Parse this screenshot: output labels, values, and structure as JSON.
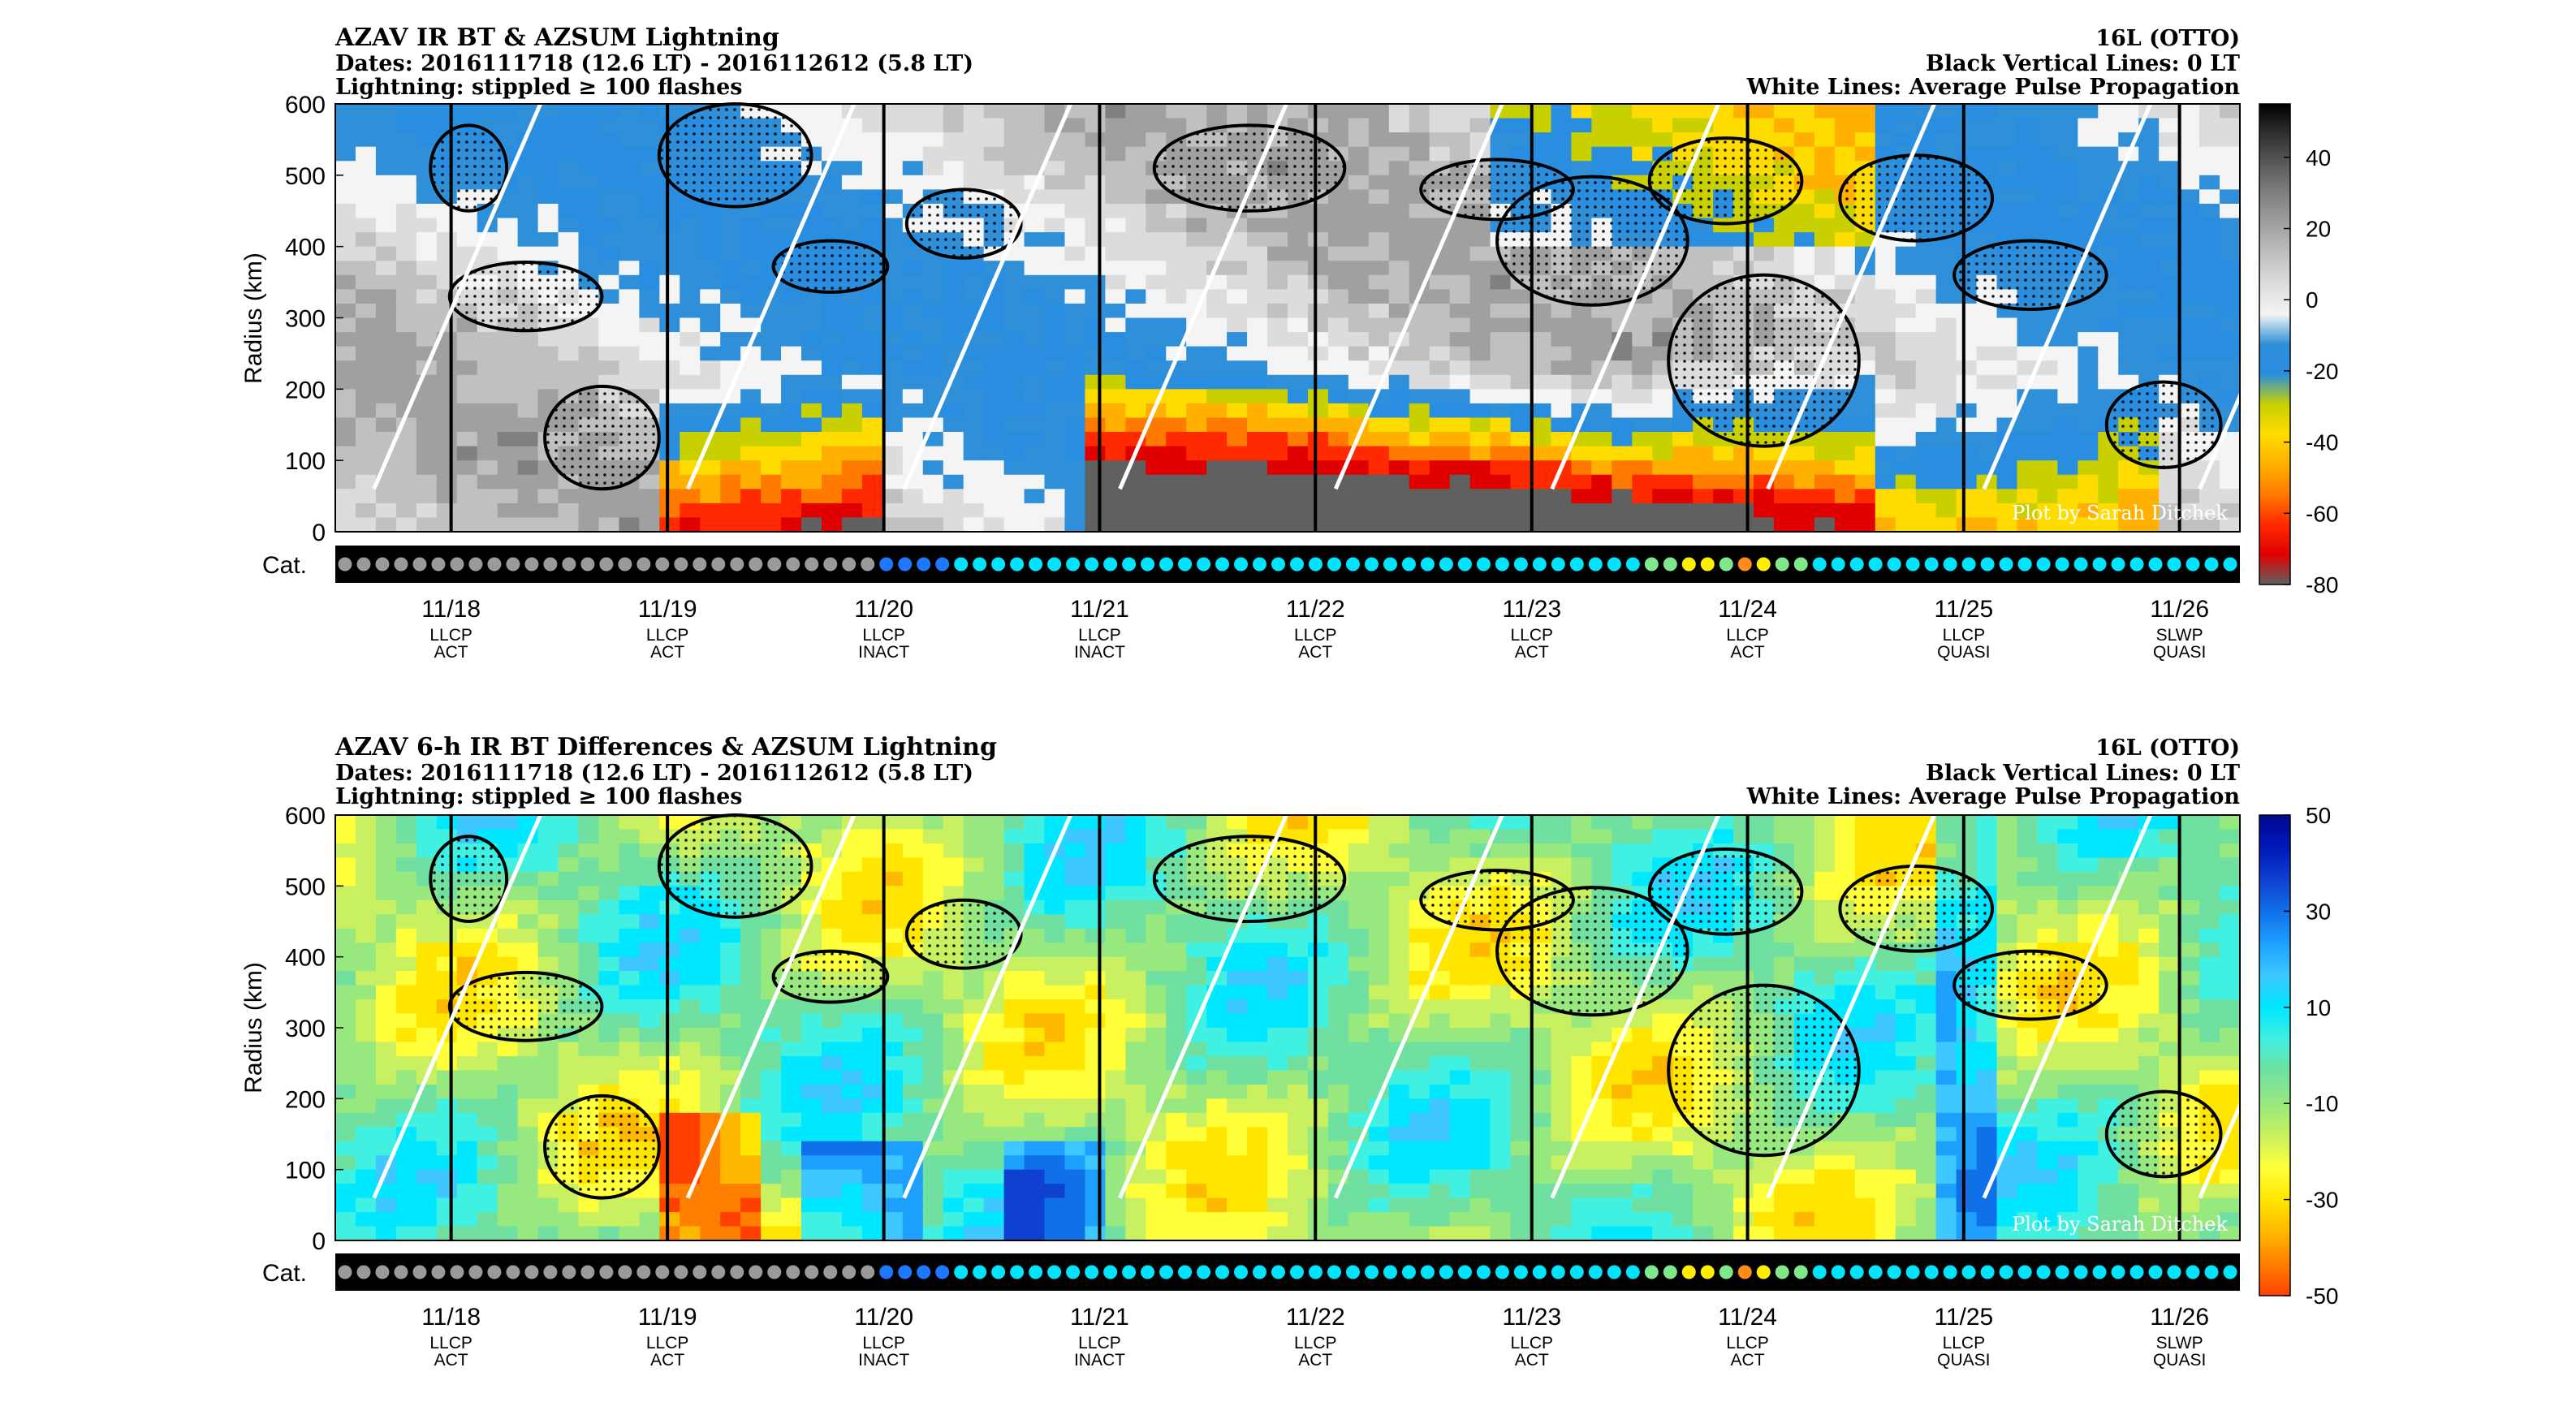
{
  "panels": [
    {
      "title_left": [
        "AZAV IR BT & AZSUM Lightning",
        "Dates: 2016111718 (12.6 LT) - 2016112612 (5.8 LT)",
        "Lightning: stippled ≥ 100 flashes"
      ],
      "title_right": [
        "16L (OTTO)",
        "Black Vertical Lines: 0 LT",
        "White Lines: Average Pulse Propagation"
      ],
      "watermark": "Plot by Sarah Ditchek",
      "colorbar_ticks": [
        "40",
        "20",
        "0",
        "-20",
        "-40",
        "-60",
        "-80"
      ],
      "colorbar_range": [
        -80,
        55
      ]
    },
    {
      "title_left": [
        "AZAV 6-h IR BT Differences & AZSUM Lightning",
        "Dates: 2016111718 (12.6 LT) - 2016112612 (5.8 LT)",
        "Lightning: stippled ≥ 100 flashes"
      ],
      "title_right": [
        "16L (OTTO)",
        "Black Vertical Lines: 0 LT",
        "White Lines: Average Pulse Propagation"
      ],
      "watermark": "Plot by Sarah Ditchek",
      "colorbar_ticks": [
        "50",
        "30",
        "10",
        "-10",
        "-30",
        "-50"
      ],
      "colorbar_range": [
        -50,
        50
      ]
    }
  ],
  "chart_data": [
    {
      "type": "heatmap",
      "title": "AZAV IR BT & AZSUM Lightning",
      "ylabel": "Radius (km)",
      "ylim": [
        0,
        600
      ],
      "yticks": [
        "0",
        "100",
        "200",
        "300",
        "400",
        "500",
        "600"
      ],
      "xlim": [
        "2016111718",
        "2016112612"
      ],
      "x_ticks": [
        {
          "date": "11/18",
          "cat": "LLCP",
          "phase": "ACT"
        },
        {
          "date": "11/19",
          "cat": "LLCP",
          "phase": "ACT"
        },
        {
          "date": "11/20",
          "cat": "LLCP",
          "phase": "INACT"
        },
        {
          "date": "11/21",
          "cat": "LLCP",
          "phase": "INACT"
        },
        {
          "date": "11/22",
          "cat": "LLCP",
          "phase": "ACT"
        },
        {
          "date": "11/23",
          "cat": "LLCP",
          "phase": "ACT"
        },
        {
          "date": "11/24",
          "cat": "LLCP",
          "phase": "ACT"
        },
        {
          "date": "11/25",
          "cat": "LLCP",
          "phase": "QUASI"
        },
        {
          "date": "11/26",
          "cat": "SLWP",
          "phase": "QUASI"
        }
      ],
      "cat_label": "Cat."
    },
    {
      "type": "heatmap",
      "title": "AZAV 6-h IR BT Differences & AZSUM Lightning",
      "ylabel": "Radius (km)",
      "ylim": [
        0,
        600
      ],
      "yticks": [
        "0",
        "100",
        "200",
        "300",
        "400",
        "500",
        "600"
      ],
      "xlim": [
        "2016111718",
        "2016112612"
      ],
      "x_ticks": [
        {
          "date": "11/18",
          "cat": "LLCP",
          "phase": "ACT"
        },
        {
          "date": "11/19",
          "cat": "LLCP",
          "phase": "ACT"
        },
        {
          "date": "11/20",
          "cat": "LLCP",
          "phase": "INACT"
        },
        {
          "date": "11/21",
          "cat": "LLCP",
          "phase": "INACT"
        },
        {
          "date": "11/22",
          "cat": "LLCP",
          "phase": "ACT"
        },
        {
          "date": "11/23",
          "cat": "LLCP",
          "phase": "ACT"
        },
        {
          "date": "11/24",
          "cat": "LLCP",
          "phase": "ACT"
        },
        {
          "date": "11/25",
          "cat": "LLCP",
          "phase": "QUASI"
        },
        {
          "date": "11/26",
          "cat": "SLWP",
          "phase": "QUASI"
        }
      ],
      "cat_label": "Cat."
    }
  ],
  "category_dots": [
    "gray",
    "gray",
    "gray",
    "gray",
    "gray",
    "gray",
    "gray",
    "gray",
    "gray",
    "gray",
    "gray",
    "gray",
    "gray",
    "gray",
    "gray",
    "gray",
    "gray",
    "gray",
    "gray",
    "gray",
    "gray",
    "gray",
    "gray",
    "gray",
    "gray",
    "gray",
    "gray",
    "gray",
    "gray",
    "blue",
    "blue",
    "blue",
    "blue",
    "cyan",
    "cyan",
    "cyan",
    "cyan",
    "cyan",
    "cyan",
    "cyan",
    "cyan",
    "cyan",
    "cyan",
    "cyan",
    "cyan",
    "cyan",
    "cyan",
    "cyan",
    "cyan",
    "cyan",
    "cyan",
    "cyan",
    "cyan",
    "cyan",
    "cyan",
    "cyan",
    "cyan",
    "cyan",
    "cyan",
    "cyan",
    "cyan",
    "cyan",
    "cyan",
    "cyan",
    "cyan",
    "cyan",
    "cyan",
    "cyan",
    "cyan",
    "cyan",
    "green",
    "green",
    "yellow",
    "yellow",
    "green",
    "orange",
    "yellow",
    "green",
    "green",
    "cyan",
    "cyan",
    "cyan",
    "cyan",
    "cyan",
    "cyan",
    "cyan",
    "cyan",
    "cyan",
    "cyan",
    "cyan",
    "cyan",
    "cyan",
    "cyan",
    "cyan",
    "cyan",
    "cyan",
    "cyan",
    "cyan",
    "cyan",
    "cyan",
    "cyan",
    "cyan"
  ],
  "dot_colors": {
    "gray": "#9a9a9a",
    "blue": "#1e78ff",
    "cyan": "#00e5ff",
    "green": "#7ee88a",
    "yellow": "#ffee00",
    "orange": "#ff8c1a"
  },
  "colormaps": {
    "ir_bt": [
      "#606060",
      "#e00000",
      "#ff2a00",
      "#ff7a00",
      "#ffb000",
      "#ffdc00",
      "#c8d000",
      "#2a8ee0",
      "#2f8fd8",
      "#f4f4f4",
      "#dcdcdc",
      "#c0c0c0",
      "#a0a0a0",
      "#808080",
      "#5a5a5a",
      "#303030",
      "#000000"
    ],
    "ir_diff": [
      "#ff4000",
      "#ff8000",
      "#ffb800",
      "#ffe600",
      "#ffff3a",
      "#c8f060",
      "#98e880",
      "#70e0a0",
      "#40f0e0",
      "#00e8ff",
      "#3ec8ff",
      "#1ea0ff",
      "#1070e8",
      "#1040d0",
      "#0018b8",
      "#000890"
    ]
  }
}
